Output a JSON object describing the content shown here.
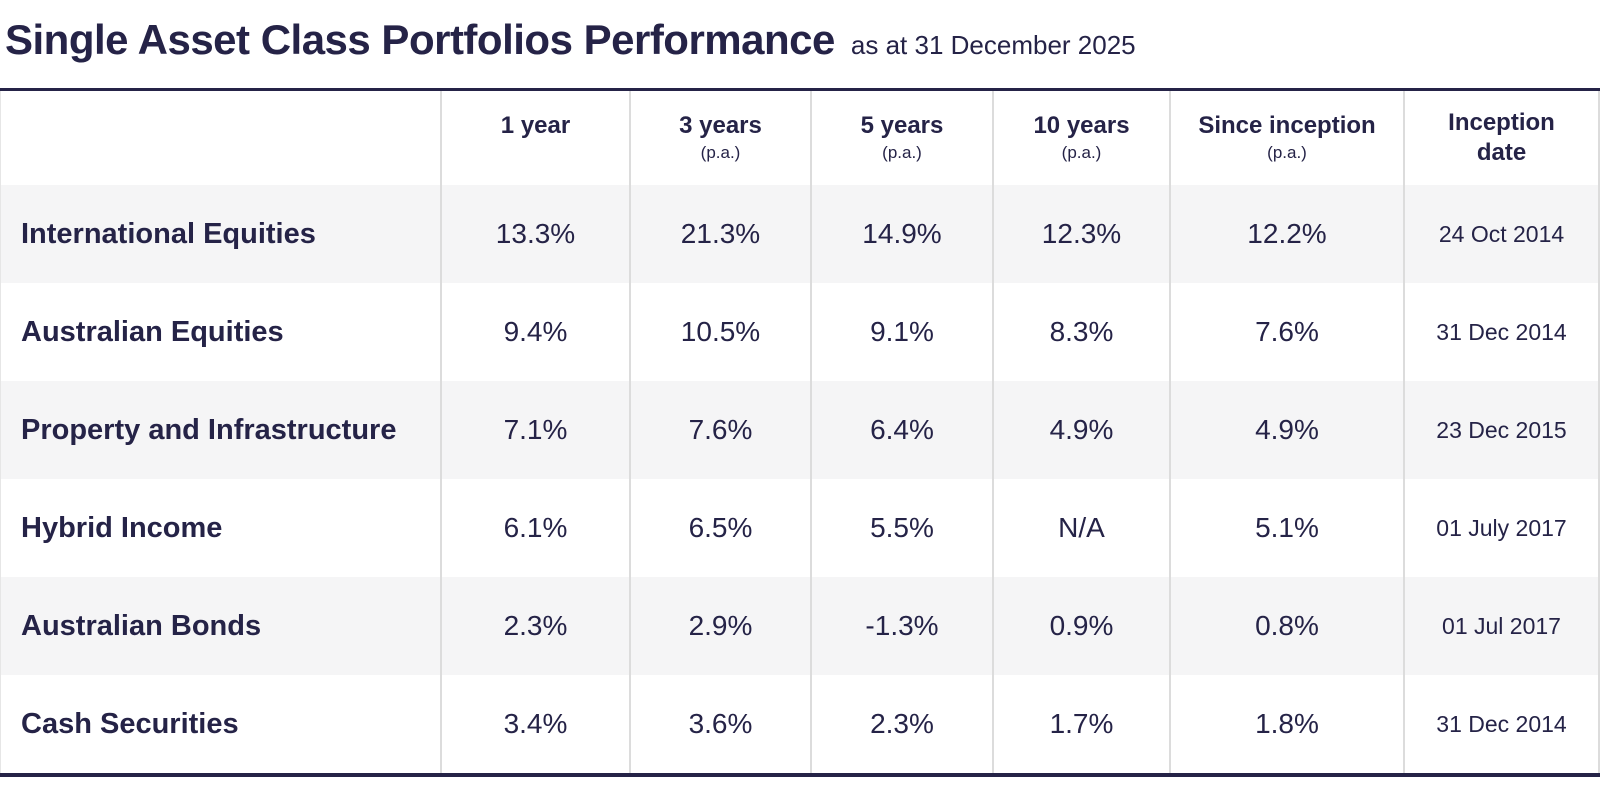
{
  "header": {
    "title": "Single Asset Class Portfolios Performance",
    "as_at": "as at 31 December 2025"
  },
  "table": {
    "columns": [
      {
        "label": "",
        "sub": ""
      },
      {
        "label": "1 year",
        "sub": ""
      },
      {
        "label": "3 years",
        "sub": "(p.a.)"
      },
      {
        "label": "5 years",
        "sub": "(p.a.)"
      },
      {
        "label": "10 years",
        "sub": "(p.a.)"
      },
      {
        "label": "Since inception",
        "sub": "(p.a.)"
      },
      {
        "label": "Inception date",
        "sub": ""
      }
    ],
    "rows": [
      {
        "name": "International Equities",
        "values": [
          "13.3%",
          "21.3%",
          "14.9%",
          "12.3%",
          "12.2%"
        ],
        "inception_date": "24 Oct 2014"
      },
      {
        "name": "Australian Equities",
        "values": [
          "9.4%",
          "10.5%",
          "9.1%",
          "8.3%",
          "7.6%"
        ],
        "inception_date": "31 Dec 2014"
      },
      {
        "name": "Property and Infrastructure",
        "values": [
          "7.1%",
          "7.6%",
          "6.4%",
          "4.9%",
          "4.9%"
        ],
        "inception_date": "23 Dec 2015"
      },
      {
        "name": "Hybrid Income",
        "values": [
          "6.1%",
          "6.5%",
          "5.5%",
          "N/A",
          "5.1%"
        ],
        "inception_date": "01 July 2017"
      },
      {
        "name": "Australian Bonds",
        "values": [
          "2.3%",
          "2.9%",
          "-1.3%",
          "0.9%",
          "0.8%"
        ],
        "inception_date": "01 Jul 2017"
      },
      {
        "name": "Cash Securities",
        "values": [
          "3.4%",
          "3.6%",
          "2.3%",
          "1.7%",
          "1.8%"
        ],
        "inception_date": "31 Dec 2014"
      }
    ]
  },
  "colors": {
    "navy": "#252347",
    "alt_row_bg": "#f5f5f6",
    "divider": "#dcdcdc"
  },
  "chart_data": {
    "type": "table",
    "title": "Single Asset Class Portfolios Performance",
    "subtitle": "as at 31 December 2025",
    "columns": [
      "1 year",
      "3 years (p.a.)",
      "5 years (p.a.)",
      "10 years (p.a.)",
      "Since inception (p.a.)",
      "Inception date"
    ],
    "rows": [
      {
        "portfolio": "International Equities",
        "1_year": 13.3,
        "3_years_pa": 21.3,
        "5_years_pa": 14.9,
        "10_years_pa": 12.3,
        "since_inception_pa": 12.2,
        "inception_date": "24 Oct 2014"
      },
      {
        "portfolio": "Australian Equities",
        "1_year": 9.4,
        "3_years_pa": 10.5,
        "5_years_pa": 9.1,
        "10_years_pa": 8.3,
        "since_inception_pa": 7.6,
        "inception_date": "31 Dec 2014"
      },
      {
        "portfolio": "Property and Infrastructure",
        "1_year": 7.1,
        "3_years_pa": 7.6,
        "5_years_pa": 6.4,
        "10_years_pa": 4.9,
        "since_inception_pa": 4.9,
        "inception_date": "23 Dec 2015"
      },
      {
        "portfolio": "Hybrid Income",
        "1_year": 6.1,
        "3_years_pa": 6.5,
        "5_years_pa": 5.5,
        "10_years_pa": null,
        "since_inception_pa": 5.1,
        "inception_date": "01 July 2017"
      },
      {
        "portfolio": "Australian Bonds",
        "1_year": 2.3,
        "3_years_pa": 2.9,
        "5_years_pa": -1.3,
        "10_years_pa": 0.9,
        "since_inception_pa": 0.8,
        "inception_date": "01 Jul 2017"
      },
      {
        "portfolio": "Cash Securities",
        "1_year": 3.4,
        "3_years_pa": 3.6,
        "5_years_pa": 2.3,
        "10_years_pa": 1.7,
        "since_inception_pa": 1.8,
        "inception_date": "31 Dec 2014"
      }
    ],
    "units": "percent",
    "values_format": "x.x%"
  }
}
